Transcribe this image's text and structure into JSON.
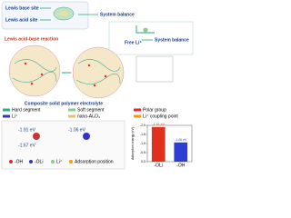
{
  "top": {
    "base_site": "Lewis base site",
    "acid_site": "Lewis acid site",
    "balance_1": "System balance",
    "free_li": "Free Li⁺",
    "balance_2": "System balance"
  },
  "middle": {
    "reaction": "Lewis acid-base reaction",
    "caption": "Composite solid polymer electrolyte"
  },
  "legend": {
    "items": [
      "Hard segment",
      "Soft segment",
      "Polar group",
      "Li⁺",
      "nano-Al₂O₃",
      "Li⁺ coupling point"
    ]
  },
  "adsorption_panel": {
    "energies": [
      "-1.91 eV",
      "-1.67 eV",
      "-1.06 eV"
    ],
    "labels": [
      "-OH",
      "-OLi",
      "Li⁺",
      "Adsorption position"
    ]
  },
  "bar_chart": {
    "type": "bar",
    "y_label": "Adsorption energy (eV)",
    "categories": [
      "-OLi",
      "-OH"
    ],
    "values": [
      -1.91,
      -1.06
    ],
    "value_labels": [
      "-1.91 eV",
      "-1.06 eV"
    ],
    "colors": [
      "#e0301e",
      "#2b3fd6"
    ],
    "ylim": [
      0,
      -2.0
    ],
    "yticks": [
      {
        "value": 0,
        "label": "0.0"
      },
      -0.5,
      {
        "value": -1.0,
        "label": "-1.0"
      },
      -1.5,
      {
        "value": -2.0,
        "label": "-2.0"
      }
    ]
  }
}
